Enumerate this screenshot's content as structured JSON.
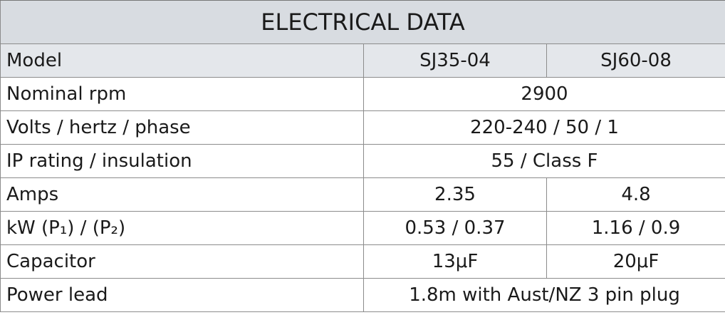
{
  "table": {
    "title": "ELECTRICAL DATA",
    "header": [
      "Model",
      "SJ35-04",
      "SJ60-08"
    ],
    "rows": [
      [
        "Nominal rpm",
        "2900"
      ],
      [
        "Volts / hertz / phase",
        "220-240 / 50 / 1"
      ],
      [
        "IP rating / insulation",
        "55 / Class F"
      ],
      [
        "Amps",
        "2.35",
        "4.8"
      ],
      [
        "kW (P₁) / (P₂)",
        "0.53 / 0.37",
        "1.16 / 0.9"
      ],
      [
        "Capacitor",
        "13μF",
        "20μF"
      ],
      [
        "Power lead",
        "1.8m with Aust/NZ 3 pin plug"
      ]
    ]
  }
}
